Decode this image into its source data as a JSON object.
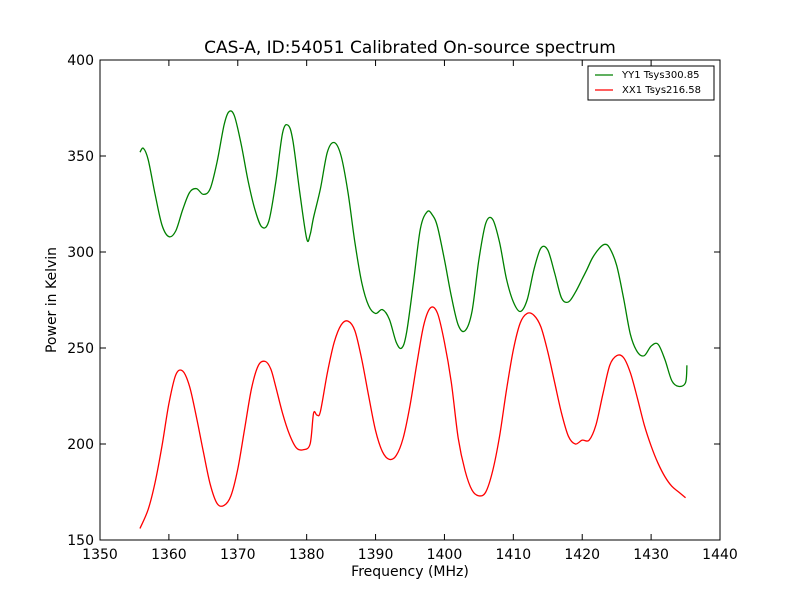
{
  "chart_data": {
    "type": "line",
    "title": "CAS-A, ID:54051 Calibrated On-source spectrum",
    "xlabel": "Frequency (MHz)",
    "ylabel": "Power in Kelvin",
    "xlim": [
      1350,
      1440
    ],
    "ylim": [
      150,
      400
    ],
    "xticks": [
      1350,
      1360,
      1370,
      1380,
      1390,
      1400,
      1410,
      1420,
      1430,
      1440
    ],
    "yticks": [
      150,
      200,
      250,
      300,
      350,
      400
    ],
    "grid": false,
    "legend_position": "top-right",
    "series": [
      {
        "name": "YY1 Tsys300.85",
        "color": "#008000",
        "x": [
          1355.8,
          1356.3,
          1357,
          1358,
          1359,
          1360,
          1361,
          1362,
          1363,
          1364,
          1365,
          1366,
          1367,
          1368,
          1368.7,
          1369.5,
          1370.5,
          1371.5,
          1372.5,
          1373.5,
          1374.5,
          1375.5,
          1376.5,
          1377.3,
          1378,
          1379,
          1380,
          1380.5,
          1381,
          1382,
          1383,
          1384,
          1385,
          1386,
          1387,
          1388,
          1389,
          1390,
          1391,
          1392,
          1393,
          1393.8,
          1394.5,
          1395.5,
          1396.5,
          1397.5,
          1398.3,
          1399,
          1400,
          1401,
          1402,
          1403,
          1404,
          1405,
          1406,
          1407,
          1408,
          1409,
          1410,
          1411,
          1412,
          1413,
          1414,
          1415,
          1416,
          1417,
          1418,
          1419,
          1420,
          1420.7,
          1421.5,
          1422.5,
          1423.3,
          1424,
          1425,
          1426,
          1427,
          1428,
          1429,
          1430,
          1431,
          1432,
          1433,
          1434,
          1435
        ],
        "values": [
          352,
          354,
          348,
          330,
          314,
          308,
          311,
          322,
          331,
          333,
          330,
          333,
          347,
          366,
          373,
          371,
          356,
          337,
          322,
          313,
          316,
          336,
          362,
          366,
          358,
          331,
          307,
          309,
          318,
          333,
          352,
          357,
          350,
          331,
          305,
          284,
          272,
          268,
          270,
          265,
          253,
          250,
          258,
          284,
          312,
          321,
          319,
          313,
          296,
          277,
          262,
          259,
          269,
          296,
          315,
          317,
          305,
          286,
          274,
          269,
          275,
          291,
          302,
          301,
          289,
          276,
          274,
          279,
          286,
          291,
          297,
          302,
          304,
          302,
          293,
          276,
          257,
          248,
          246,
          251,
          252,
          244,
          233,
          230,
          232
        ],
        "values_end": 241
      },
      {
        "name": "XX1 Tsys216.58",
        "color": "#ff0000",
        "x": [
          1355.8,
          1357,
          1358,
          1359,
          1360,
          1361,
          1362,
          1363,
          1364,
          1365,
          1366,
          1367,
          1368,
          1369,
          1370,
          1371,
          1372,
          1373,
          1374,
          1374.8,
          1375.5,
          1376.5,
          1377.5,
          1378.5,
          1379.5,
          1380.5,
          1381,
          1381.5,
          1382,
          1383,
          1384,
          1385,
          1386,
          1387,
          1388,
          1389,
          1390,
          1391,
          1392,
          1393,
          1394,
          1395,
          1396,
          1397,
          1398,
          1399,
          1400,
          1401,
          1402,
          1403,
          1404,
          1405,
          1406,
          1407,
          1408,
          1409,
          1410,
          1411,
          1412,
          1413,
          1414,
          1415,
          1416,
          1417,
          1418,
          1419,
          1420,
          1421,
          1422,
          1423,
          1424,
          1425,
          1426,
          1427,
          1428,
          1429,
          1430,
          1431,
          1432,
          1433,
          1434,
          1435
        ],
        "values": [
          156,
          166,
          180,
          199,
          221,
          236,
          238,
          230,
          214,
          196,
          179,
          169,
          168,
          173,
          187,
          208,
          229,
          241,
          243,
          239,
          230,
          216,
          205,
          198,
          197,
          200,
          216,
          215,
          217,
          237,
          253,
          262,
          264,
          259,
          244,
          225,
          207,
          196,
          192,
          194,
          203,
          220,
          242,
          262,
          271,
          268,
          253,
          232,
          203,
          186,
          176,
          173,
          175,
          186,
          204,
          228,
          249,
          263,
          268,
          267,
          261,
          248,
          232,
          216,
          204,
          200,
          202,
          202,
          210,
          226,
          241,
          246,
          245,
          237,
          224,
          210,
          199,
          190,
          183,
          178,
          175,
          172
        ]
      }
    ]
  }
}
